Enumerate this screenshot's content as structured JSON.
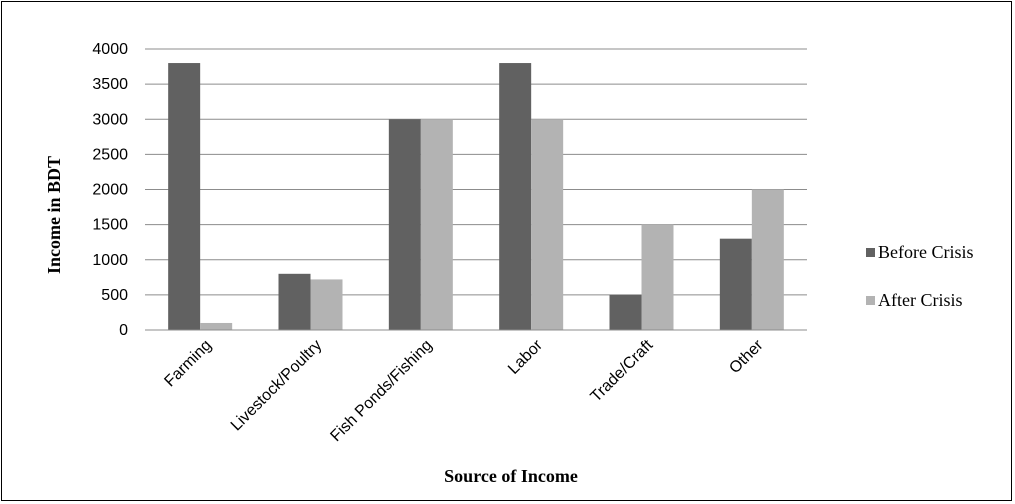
{
  "chart_data": {
    "type": "bar",
    "title": "",
    "xlabel": "Source of Income",
    "ylabel": "Income in BDT",
    "categories": [
      "Farming",
      "Livestock/Poultry",
      "Fish Ponds/Fishing",
      "Labor",
      "Trade/Craft",
      "Other"
    ],
    "series": [
      {
        "name": "Before Crisis",
        "color": "#616161",
        "values": [
          3800,
          800,
          3000,
          3800,
          500,
          1300
        ]
      },
      {
        "name": "After Crisis",
        "color": "#b3b3b3",
        "values": [
          100,
          720,
          3000,
          3000,
          1500,
          2000
        ]
      }
    ],
    "ylim": [
      0,
      4000
    ],
    "yticks": [
      "0",
      "500",
      "1000",
      "1500",
      "2000",
      "2500",
      "3000",
      "3500",
      "4000"
    ],
    "grid": true,
    "legend": "right"
  }
}
